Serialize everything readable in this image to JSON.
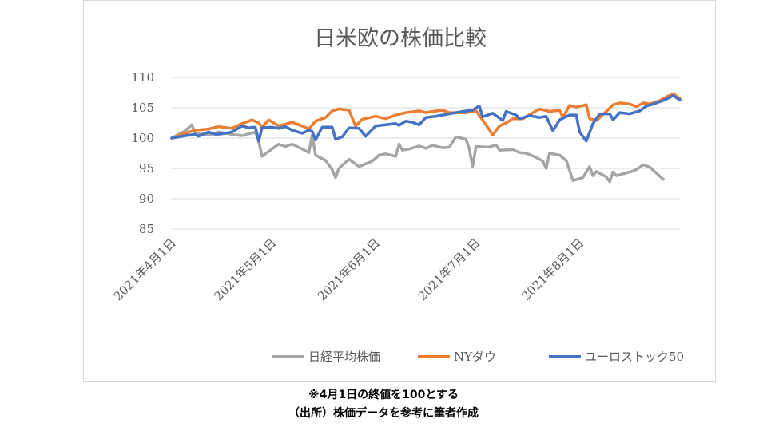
{
  "chart_data": {
    "type": "line",
    "title": "日米欧の株価比較",
    "ylim": [
      85,
      110
    ],
    "yticks": [
      85,
      90,
      95,
      100,
      105,
      110
    ],
    "grid": true,
    "legend_position": "bottom",
    "x_start": "2021-04-01",
    "x_end": "2021-08-31",
    "xtick_dates": [
      "2021-04-01",
      "2021-05-01",
      "2021-06-01",
      "2021-07-01",
      "2021-08-01"
    ],
    "xtick_labels": [
      "2021年4月1日",
      "2021年5月1日",
      "2021年6月1日",
      "2021年7月1日",
      "2021年8月1日"
    ],
    "series": [
      {
        "name": "日経平均株価",
        "color": "#a5a5a5",
        "points": [
          [
            "2021-04-01",
            100
          ],
          [
            "2021-04-05",
            101.2
          ],
          [
            "2021-04-07",
            102.2
          ],
          [
            "2021-04-08",
            100.8
          ],
          [
            "2021-04-12",
            100.5
          ],
          [
            "2021-04-15",
            101
          ],
          [
            "2021-04-19",
            100.6
          ],
          [
            "2021-04-22",
            100.4
          ],
          [
            "2021-04-26",
            101
          ],
          [
            "2021-04-27",
            99.5
          ],
          [
            "2021-04-28",
            97
          ],
          [
            "2021-04-30",
            97.8
          ],
          [
            "2021-05-03",
            99
          ],
          [
            "2021-05-05",
            98.6
          ],
          [
            "2021-05-07",
            99
          ],
          [
            "2021-05-10",
            98.2
          ],
          [
            "2021-05-12",
            97.6
          ],
          [
            "2021-05-13",
            100.5
          ],
          [
            "2021-05-14",
            97.2
          ],
          [
            "2021-05-17",
            96.3
          ],
          [
            "2021-05-19",
            94.8
          ],
          [
            "2021-05-20",
            93.5
          ],
          [
            "2021-05-21",
            95
          ],
          [
            "2021-05-24",
            96.5
          ],
          [
            "2021-05-27",
            95.3
          ],
          [
            "2021-05-31",
            96.2
          ],
          [
            "2021-06-02",
            97.2
          ],
          [
            "2021-06-04",
            97.4
          ],
          [
            "2021-06-07",
            97
          ],
          [
            "2021-06-08",
            99
          ],
          [
            "2021-06-09",
            98
          ],
          [
            "2021-06-11",
            98.2
          ],
          [
            "2021-06-14",
            98.7
          ],
          [
            "2021-06-16",
            98.3
          ],
          [
            "2021-06-18",
            98.8
          ],
          [
            "2021-06-21",
            98.4
          ],
          [
            "2021-06-23",
            98.5
          ],
          [
            "2021-06-25",
            100.2
          ],
          [
            "2021-06-28",
            99.8
          ],
          [
            "2021-06-29",
            98.2
          ],
          [
            "2021-06-30",
            95.3
          ],
          [
            "2021-07-01",
            98.6
          ],
          [
            "2021-07-05",
            98.5
          ],
          [
            "2021-07-07",
            98.9
          ],
          [
            "2021-07-08",
            98
          ],
          [
            "2021-07-12",
            98.1
          ],
          [
            "2021-07-14",
            97.6
          ],
          [
            "2021-07-16",
            97.5
          ],
          [
            "2021-07-19",
            96.8
          ],
          [
            "2021-07-21",
            96.2
          ],
          [
            "2021-07-22",
            95
          ],
          [
            "2021-07-23",
            97.5
          ],
          [
            "2021-07-26",
            97.2
          ],
          [
            "2021-07-28",
            96.3
          ],
          [
            "2021-07-30",
            93
          ],
          [
            "2021-08-02",
            93.5
          ],
          [
            "2021-08-04",
            95.3
          ],
          [
            "2021-08-05",
            93.8
          ],
          [
            "2021-08-06",
            94.5
          ],
          [
            "2021-08-09",
            93.6
          ],
          [
            "2021-08-10",
            92.8
          ],
          [
            "2021-08-11",
            94.4
          ],
          [
            "2021-08-12",
            93.8
          ],
          [
            "2021-08-16",
            94.4
          ],
          [
            "2021-08-18",
            94.8
          ],
          [
            "2021-08-20",
            95.6
          ],
          [
            "2021-08-22",
            95.2
          ],
          [
            "2021-08-26",
            93.2
          ]
        ]
      },
      {
        "name": "NYダウ",
        "color": "#ed7d31",
        "points": [
          [
            "2021-04-01",
            100
          ],
          [
            "2021-04-05",
            100.8
          ],
          [
            "2021-04-08",
            101.3
          ],
          [
            "2021-04-12",
            101.5
          ],
          [
            "2021-04-15",
            101.9
          ],
          [
            "2021-04-19",
            101.6
          ],
          [
            "2021-04-22",
            102.4
          ],
          [
            "2021-04-25",
            103
          ],
          [
            "2021-04-27",
            102.5
          ],
          [
            "2021-04-28",
            101.8
          ],
          [
            "2021-04-30",
            103
          ],
          [
            "2021-05-03",
            102
          ],
          [
            "2021-05-05",
            102.3
          ],
          [
            "2021-05-07",
            102.6
          ],
          [
            "2021-05-10",
            102
          ],
          [
            "2021-05-12",
            101.5
          ],
          [
            "2021-05-14",
            102.8
          ],
          [
            "2021-05-17",
            103.4
          ],
          [
            "2021-05-19",
            104.5
          ],
          [
            "2021-05-21",
            104.8
          ],
          [
            "2021-05-24",
            104.6
          ],
          [
            "2021-05-26",
            102
          ],
          [
            "2021-05-28",
            103.1
          ],
          [
            "2021-06-01",
            103.6
          ],
          [
            "2021-06-04",
            103.2
          ],
          [
            "2021-06-07",
            103.8
          ],
          [
            "2021-06-10",
            104.2
          ],
          [
            "2021-06-14",
            104.5
          ],
          [
            "2021-06-16",
            104.2
          ],
          [
            "2021-06-18",
            104.4
          ],
          [
            "2021-06-21",
            104.6
          ],
          [
            "2021-06-23",
            104.2
          ],
          [
            "2021-06-28",
            104.2
          ],
          [
            "2021-07-01",
            104.5
          ],
          [
            "2021-07-04",
            102.2
          ],
          [
            "2021-07-06",
            100.5
          ],
          [
            "2021-07-08",
            102
          ],
          [
            "2021-07-10",
            102.5
          ],
          [
            "2021-07-12",
            103.2
          ],
          [
            "2021-07-15",
            103.2
          ],
          [
            "2021-07-18",
            104.2
          ],
          [
            "2021-07-20",
            104.8
          ],
          [
            "2021-07-23",
            104.4
          ],
          [
            "2021-07-26",
            104.6
          ],
          [
            "2021-07-27",
            103.4
          ],
          [
            "2021-07-29",
            105.4
          ],
          [
            "2021-07-31",
            105.1
          ],
          [
            "2021-08-03",
            105.5
          ],
          [
            "2021-08-04",
            103.2
          ],
          [
            "2021-08-06",
            102.9
          ],
          [
            "2021-08-09",
            104.4
          ],
          [
            "2021-08-11",
            105.5
          ],
          [
            "2021-08-13",
            105.8
          ],
          [
            "2021-08-16",
            105.6
          ],
          [
            "2021-08-18",
            105.2
          ],
          [
            "2021-08-20",
            105.8
          ],
          [
            "2021-08-22",
            105.6
          ],
          [
            "2021-08-25",
            106.2
          ],
          [
            "2021-08-27",
            106.8
          ],
          [
            "2021-08-29",
            107.3
          ],
          [
            "2021-08-31",
            106.5
          ]
        ]
      },
      {
        "name": "ユーロストック50",
        "color": "#4472c4",
        "points": [
          [
            "2021-04-01",
            100
          ],
          [
            "2021-04-05",
            100.4
          ],
          [
            "2021-04-08",
            100.6
          ],
          [
            "2021-04-09",
            100.3
          ],
          [
            "2021-04-12",
            101
          ],
          [
            "2021-04-14",
            100.6
          ],
          [
            "2021-04-16",
            100.7
          ],
          [
            "2021-04-19",
            101
          ],
          [
            "2021-04-22",
            102
          ],
          [
            "2021-04-24",
            101.7
          ],
          [
            "2021-04-26",
            101.8
          ],
          [
            "2021-04-27",
            99.5
          ],
          [
            "2021-04-28",
            101.7
          ],
          [
            "2021-05-01",
            101.8
          ],
          [
            "2021-05-03",
            101.6
          ],
          [
            "2021-05-05",
            101.9
          ],
          [
            "2021-05-07",
            101.3
          ],
          [
            "2021-05-10",
            100.8
          ],
          [
            "2021-05-12",
            101.3
          ],
          [
            "2021-05-13",
            101.1
          ],
          [
            "2021-05-14",
            99.7
          ],
          [
            "2021-05-16",
            101.8
          ],
          [
            "2021-05-19",
            101.8
          ],
          [
            "2021-05-20",
            99.8
          ],
          [
            "2021-05-22",
            100.2
          ],
          [
            "2021-05-24",
            101.7
          ],
          [
            "2021-05-27",
            101.6
          ],
          [
            "2021-05-29",
            100.3
          ],
          [
            "2021-06-01",
            102
          ],
          [
            "2021-06-04",
            102.2
          ],
          [
            "2021-06-07",
            102.4
          ],
          [
            "2021-06-08",
            102.1
          ],
          [
            "2021-06-10",
            102.8
          ],
          [
            "2021-06-12",
            102.6
          ],
          [
            "2021-06-14",
            102.2
          ],
          [
            "2021-06-16",
            103.4
          ],
          [
            "2021-06-19",
            103.6
          ],
          [
            "2021-06-21",
            103.8
          ],
          [
            "2021-06-24",
            104.1
          ],
          [
            "2021-06-27",
            104.4
          ],
          [
            "2021-06-30",
            104.6
          ],
          [
            "2021-07-02",
            105.3
          ],
          [
            "2021-07-03",
            103.5
          ],
          [
            "2021-07-06",
            104.1
          ],
          [
            "2021-07-09",
            102.9
          ],
          [
            "2021-07-10",
            104.4
          ],
          [
            "2021-07-13",
            103.8
          ],
          [
            "2021-07-14",
            103.2
          ],
          [
            "2021-07-17",
            103.7
          ],
          [
            "2021-07-20",
            103.4
          ],
          [
            "2021-07-22",
            103.6
          ],
          [
            "2021-07-24",
            101.2
          ],
          [
            "2021-07-26",
            103
          ],
          [
            "2021-07-29",
            103.8
          ],
          [
            "2021-07-31",
            103.8
          ],
          [
            "2021-08-01",
            101
          ],
          [
            "2021-08-03",
            99.5
          ],
          [
            "2021-08-05",
            102.4
          ],
          [
            "2021-08-07",
            104
          ],
          [
            "2021-08-10",
            104
          ],
          [
            "2021-08-11",
            103
          ],
          [
            "2021-08-13",
            104.2
          ],
          [
            "2021-08-16",
            104
          ],
          [
            "2021-08-19",
            104.5
          ],
          [
            "2021-08-21",
            105.3
          ],
          [
            "2021-08-23",
            105.6
          ],
          [
            "2021-08-26",
            106.2
          ],
          [
            "2021-08-29",
            107
          ],
          [
            "2021-08-31",
            106.3
          ]
        ]
      }
    ]
  },
  "captions": {
    "note": "※4月1日の終値を100とする",
    "source": "（出所）株価データを参考に筆者作成"
  }
}
